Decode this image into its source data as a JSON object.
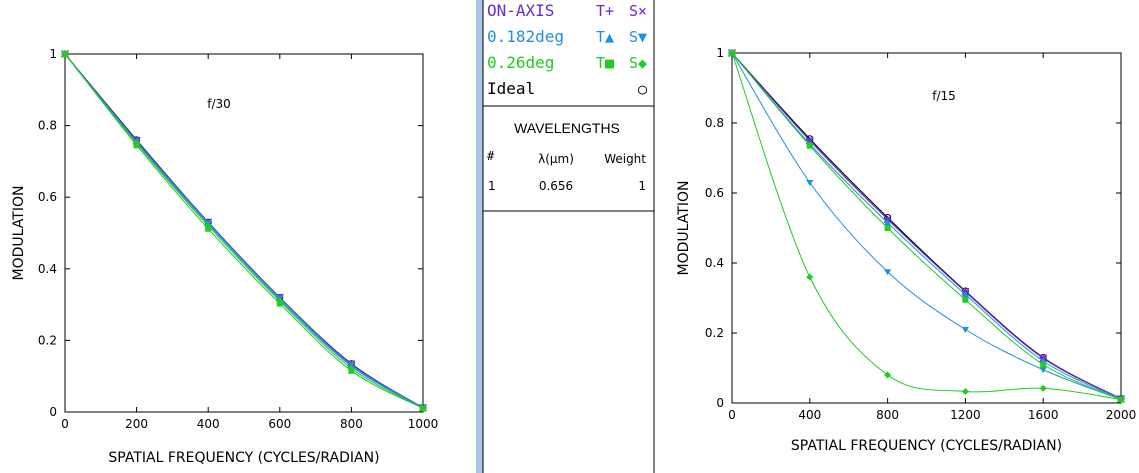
{
  "chart_data": [
    {
      "type": "line",
      "annotation": "f/30",
      "xlabel": "SPATIAL FREQUENCY (CYCLES/RADIAN)",
      "ylabel": "MODULATION",
      "xlim": [
        0,
        1000
      ],
      "ylim": [
        0,
        1
      ],
      "xticks": [
        0,
        200,
        400,
        600,
        800,
        1000
      ],
      "yticks": [
        0,
        0.2,
        0.4,
        0.6,
        0.8,
        1
      ],
      "ytick_labels": [
        "0",
        "0.2",
        "0.4",
        "0.6",
        "0.8",
        "1"
      ],
      "grid": false,
      "series": [
        {
          "name": "Ideal",
          "color": "#000000",
          "marker": "circle",
          "x": [
            0,
            200,
            400,
            600,
            800,
            1000
          ],
          "y": [
            1,
            0.76,
            0.53,
            0.32,
            0.135,
            0.012
          ]
        },
        {
          "name": "ON-AXIS T",
          "color": "#6a2ad6",
          "marker": "plus",
          "x": [
            0,
            200,
            400,
            600,
            800,
            1000
          ],
          "y": [
            1,
            0.758,
            0.53,
            0.32,
            0.134,
            0.012
          ]
        },
        {
          "name": "ON-AXIS S",
          "color": "#6a2ad6",
          "marker": "cross",
          "x": [
            0,
            200,
            400,
            600,
            800,
            1000
          ],
          "y": [
            1,
            0.758,
            0.53,
            0.32,
            0.134,
            0.012
          ]
        },
        {
          "name": "0.182deg T",
          "color": "#1e90e0",
          "marker": "triangle-up",
          "x": [
            0,
            200,
            400,
            600,
            800,
            1000
          ],
          "y": [
            1,
            0.752,
            0.525,
            0.314,
            0.128,
            0.011
          ]
        },
        {
          "name": "0.182deg S",
          "color": "#1e90e0",
          "marker": "triangle-down",
          "x": [
            0,
            200,
            400,
            600,
            800,
            1000
          ],
          "y": [
            1,
            0.755,
            0.528,
            0.318,
            0.131,
            0.012
          ]
        },
        {
          "name": "0.26deg T",
          "color": "#22cc22",
          "marker": "square",
          "x": [
            0,
            200,
            400,
            600,
            800,
            1000
          ],
          "y": [
            1,
            0.745,
            0.512,
            0.303,
            0.115,
            0.01
          ]
        },
        {
          "name": "0.26deg S",
          "color": "#22cc22",
          "marker": "diamond",
          "x": [
            0,
            200,
            400,
            600,
            800,
            1000
          ],
          "y": [
            1,
            0.75,
            0.52,
            0.31,
            0.122,
            0.01
          ]
        }
      ]
    },
    {
      "type": "line",
      "annotation": "f/15",
      "xlabel": "SPATIAL FREQUENCY (CYCLES/RADIAN)",
      "ylabel": "MODULATION",
      "xlim": [
        0,
        2000
      ],
      "ylim": [
        0,
        1
      ],
      "xticks": [
        0,
        400,
        800,
        1200,
        1600,
        2000
      ],
      "yticks": [
        0,
        0.2,
        0.4,
        0.6,
        0.8,
        1
      ],
      "ytick_labels": [
        "0",
        "0.2",
        "0.4",
        "0.6",
        "0.8",
        "1"
      ],
      "grid": false,
      "series": [
        {
          "name": "Ideal",
          "color": "#000000",
          "marker": "circle",
          "x": [
            0,
            400,
            800,
            1200,
            1600,
            2000
          ],
          "y": [
            1,
            0.755,
            0.53,
            0.32,
            0.13,
            0.012
          ]
        },
        {
          "name": "ON-AXIS T",
          "color": "#6a2ad6",
          "marker": "plus",
          "x": [
            0,
            400,
            800,
            1200,
            1600,
            2000
          ],
          "y": [
            1,
            0.75,
            0.525,
            0.318,
            0.128,
            0.012
          ]
        },
        {
          "name": "ON-AXIS S",
          "color": "#6a2ad6",
          "marker": "cross",
          "x": [
            0,
            400,
            800,
            1200,
            1600,
            2000
          ],
          "y": [
            1,
            0.75,
            0.525,
            0.318,
            0.128,
            0.012
          ]
        },
        {
          "name": "0.182deg T",
          "color": "#1e90e0",
          "marker": "triangle-up",
          "x": [
            0,
            400,
            800,
            1200,
            1600,
            2000
          ],
          "y": [
            1,
            0.74,
            0.515,
            0.31,
            0.12,
            0.011
          ]
        },
        {
          "name": "0.182deg S",
          "color": "#1e90e0",
          "marker": "triangle-down",
          "x": [
            0,
            400,
            800,
            1200,
            1600,
            2000
          ],
          "y": [
            1,
            0.63,
            0.375,
            0.21,
            0.095,
            0.01
          ]
        },
        {
          "name": "0.26deg T",
          "color": "#22cc22",
          "marker": "square",
          "x": [
            0,
            400,
            800,
            1200,
            1600,
            2000
          ],
          "y": [
            1,
            0.735,
            0.5,
            0.295,
            0.11,
            0.01
          ]
        },
        {
          "name": "0.26deg S",
          "color": "#22cc22",
          "marker": "diamond",
          "x": [
            0,
            400,
            800,
            1200,
            1600,
            2000
          ],
          "y": [
            1,
            0.36,
            0.08,
            0.033,
            0.042,
            0.01
          ]
        }
      ]
    }
  ],
  "legend": {
    "rows": [
      {
        "label": "ON-AXIS",
        "t_label": "T+",
        "s_label": "S×",
        "color": "#6a2ad6",
        "t_marker": "plus",
        "s_marker": "cross"
      },
      {
        "label": "0.182deg",
        "t_label": "T▲",
        "s_label": "S▼",
        "color": "#1e90e0",
        "t_marker": "triangle-up",
        "s_marker": "triangle-down"
      },
      {
        "label": "0.26deg",
        "t_label": "T■",
        "s_label": "S◆",
        "color": "#22cc22",
        "t_marker": "square",
        "s_marker": "diamond"
      },
      {
        "label": "Ideal",
        "t_label": "",
        "s_label": "○",
        "color": "#000000",
        "t_marker": "",
        "s_marker": "circle"
      }
    ]
  },
  "wavelengths": {
    "title": "WAVELENGTHS",
    "headers": [
      "#",
      "λ(μm)",
      "Weight"
    ],
    "rows": [
      [
        "1",
        "0.656",
        "1"
      ]
    ]
  },
  "colors": {
    "sidebar_strip": "#a9c8e8"
  }
}
